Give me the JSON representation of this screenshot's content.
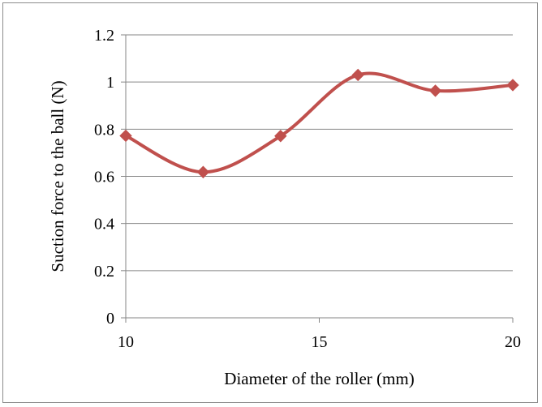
{
  "chart_data": {
    "type": "line",
    "title": "",
    "xlabel": "Diameter of the roller (mm)",
    "ylabel": "Suction force to the ball (N)",
    "x": [
      10,
      12,
      14,
      16,
      18,
      20
    ],
    "series": [
      {
        "values": [
          0.772,
          0.618,
          0.771,
          1.03,
          0.963,
          0.987
        ],
        "color": "#c0504d",
        "marker": "diamond",
        "smooth": true
      }
    ],
    "xlim": [
      10,
      20
    ],
    "ylim": [
      0,
      1.2
    ],
    "xticks": [
      10,
      15,
      20
    ],
    "xtick_labels": [
      "10",
      "15",
      "20"
    ],
    "yticks": [
      0,
      0.2,
      0.4,
      0.6,
      0.8,
      1,
      1.2
    ],
    "ytick_labels": [
      "0",
      "0.2",
      "0.4",
      "0.6",
      "0.8",
      "1",
      "1.2"
    ],
    "grid": "horizontal",
    "legend": "none"
  }
}
